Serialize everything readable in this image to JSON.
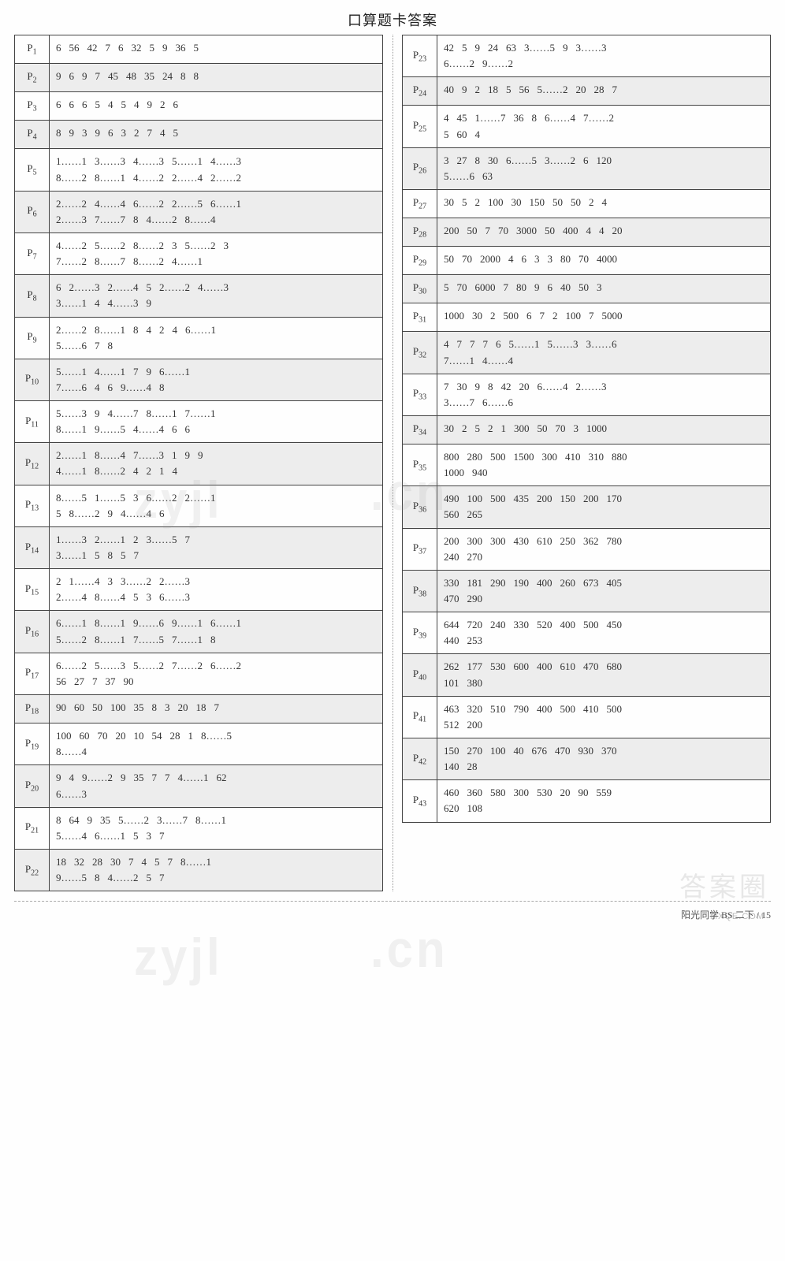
{
  "title": "口算题卡答案",
  "footer": "阳光同学  BS 二下 / 15",
  "watermarks": {
    "a": "zyjl",
    "b": ".cn"
  },
  "badge": "答案圈",
  "mxqe": "MXQE.COM",
  "colors": {
    "shade_bg": "#ededed",
    "border": "#444444",
    "text": "#333333",
    "divider": "#999999"
  },
  "left": [
    {
      "p": "1",
      "shade": false,
      "v": "6　56　42　7　6　32　5　9　36　5"
    },
    {
      "p": "2",
      "shade": true,
      "v": "9　6　9　7　45　48　35　24　8　8"
    },
    {
      "p": "3",
      "shade": false,
      "v": "6　6　6　5　4　5　4　9　2　6"
    },
    {
      "p": "4",
      "shade": true,
      "v": "8　9　3　9　6　3　2　7　4　5"
    },
    {
      "p": "5",
      "shade": false,
      "v": "1……1　3……3　4……3　5……1　4……3\n8……2　8……1　4……2　2……4　2……2"
    },
    {
      "p": "6",
      "shade": true,
      "v": "2……2　4……4　6……2　2……5　6……1\n2……3　7……7　8　4……2　8……4"
    },
    {
      "p": "7",
      "shade": false,
      "v": "4……2　5……2　8……2　3　5……2　3\n7……2　8……7　8……2　4……1"
    },
    {
      "p": "8",
      "shade": true,
      "v": "6　2……3　2……4　5　2……2　4……3\n3……1　4　4……3　9"
    },
    {
      "p": "9",
      "shade": false,
      "v": "2……2　8……1　8　4　2　4　6……1\n5……6　7　8"
    },
    {
      "p": "10",
      "shade": true,
      "v": "5……1　4……1　7　9　6……1\n7……6　4　6　9……4　8"
    },
    {
      "p": "11",
      "shade": false,
      "v": "5……3　9　4……7　8……1　7……1\n8……1　9……5　4……4　6　6"
    },
    {
      "p": "12",
      "shade": true,
      "v": "2……1　8……4　7……3　1　9　9\n4……1　8……2　4　2　1　4"
    },
    {
      "p": "13",
      "shade": false,
      "v": "8……5　1……5　3　6……2　2……1\n5　8……2　9　4……4　6"
    },
    {
      "p": "14",
      "shade": true,
      "v": "1……3　2……1　2　3……5　7\n3……1　5　8　5　7"
    },
    {
      "p": "15",
      "shade": false,
      "v": "2　1……4　3　3……2　2……3\n2……4　8……4　5　3　6……3"
    },
    {
      "p": "16",
      "shade": true,
      "v": "6……1　8……1　9……6　9……1　6……1\n5……2　8……1　7……5　7……1　8"
    },
    {
      "p": "17",
      "shade": false,
      "v": "6……2　5……3　5……2　7……2　6……2\n56　27　7　37　90"
    },
    {
      "p": "18",
      "shade": true,
      "v": "90　60　50　100　35　8　3　20　18　7"
    },
    {
      "p": "19",
      "shade": false,
      "v": "100　60　70　20　10　54　28　1　8……5\n8……4"
    },
    {
      "p": "20",
      "shade": true,
      "v": "9　4　9……2　9　35　7　7　4……1　62\n6……3"
    },
    {
      "p": "21",
      "shade": false,
      "v": "8　64　9　35　5……2　3……7　8……1\n5……4　6……1　5　3　7"
    },
    {
      "p": "22",
      "shade": true,
      "v": "18　32　28　30　7　4　5　7　8……1\n9……5　8　4……2　5　7"
    }
  ],
  "right": [
    {
      "p": "23",
      "shade": false,
      "v": "42　5　9　24　63　3……5　9　3……3\n6……2　9……2"
    },
    {
      "p": "24",
      "shade": true,
      "v": "40　9　2　18　5　56　5……2　20　28　7"
    },
    {
      "p": "25",
      "shade": false,
      "v": "4　45　1……7　36　8　6……4　7……2\n5　60　4"
    },
    {
      "p": "26",
      "shade": true,
      "v": "3　27　8　30　6……5　3……2　6　120\n5……6　63"
    },
    {
      "p": "27",
      "shade": false,
      "v": "30　5　2　100　30　150　50　50　2　4"
    },
    {
      "p": "28",
      "shade": true,
      "v": "200　50　7　70　3000　50　400　4　4　20"
    },
    {
      "p": "29",
      "shade": false,
      "v": "50　70　2000　4　6　3　3　80　70　4000"
    },
    {
      "p": "30",
      "shade": true,
      "v": "5　70　6000　7　80　9　6　40　50　3"
    },
    {
      "p": "31",
      "shade": false,
      "v": "1000　30　2　500　6　7　2　100　7　5000"
    },
    {
      "p": "32",
      "shade": true,
      "v": "4　7　7　7　6　5……1　5……3　3……6\n7……1　4……4"
    },
    {
      "p": "33",
      "shade": false,
      "v": "7　30　9　8　42　20　6……4　2……3\n3……7　6……6"
    },
    {
      "p": "34",
      "shade": true,
      "v": "30　2　5　2　1　300　50　70　3　1000"
    },
    {
      "p": "35",
      "shade": false,
      "v": "800　280　500　1500　300　410　310　880\n1000　940"
    },
    {
      "p": "36",
      "shade": true,
      "v": "490　100　500　435　200　150　200　170\n560　265"
    },
    {
      "p": "37",
      "shade": false,
      "v": "200　300　300　430　610　250　362　780\n240　270"
    },
    {
      "p": "38",
      "shade": true,
      "v": "330　181　290　190　400　260　673　405\n470　290"
    },
    {
      "p": "39",
      "shade": false,
      "v": "644　720　240　330　520　400　500　450\n440　253"
    },
    {
      "p": "40",
      "shade": true,
      "v": "262　177　530　600　400　610　470　680\n101　380"
    },
    {
      "p": "41",
      "shade": false,
      "v": "463　320　510　790　400　500　410　500\n512　200"
    },
    {
      "p": "42",
      "shade": true,
      "v": "150　270　100　40　676　470　930　370\n140　28"
    },
    {
      "p": "43",
      "shade": false,
      "v": "460　360　580　300　530　20　90　559\n620　108"
    }
  ]
}
